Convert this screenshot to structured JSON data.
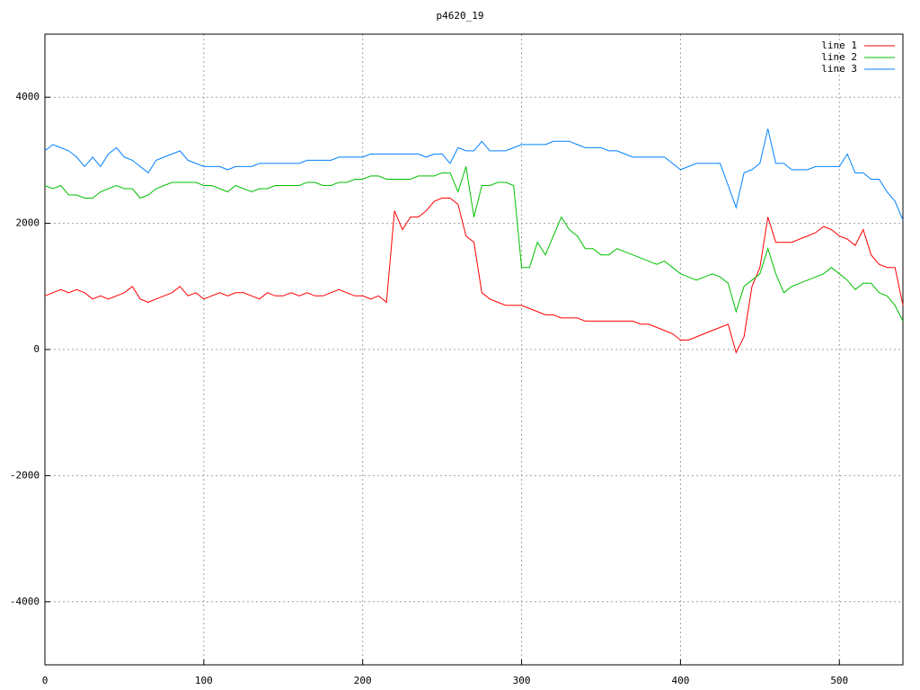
{
  "chart_data": {
    "type": "line",
    "title": "p4620_19",
    "x": [
      0,
      5,
      10,
      15,
      20,
      25,
      30,
      35,
      40,
      45,
      50,
      55,
      60,
      65,
      70,
      75,
      80,
      85,
      90,
      95,
      100,
      105,
      110,
      115,
      120,
      125,
      130,
      135,
      140,
      145,
      150,
      155,
      160,
      165,
      170,
      175,
      180,
      185,
      190,
      195,
      200,
      205,
      210,
      215,
      220,
      225,
      230,
      235,
      240,
      245,
      250,
      255,
      260,
      265,
      270,
      275,
      280,
      285,
      290,
      295,
      300,
      305,
      310,
      315,
      320,
      325,
      330,
      335,
      340,
      345,
      350,
      355,
      360,
      365,
      370,
      375,
      380,
      385,
      390,
      395,
      400,
      405,
      410,
      415,
      420,
      425,
      430,
      435,
      440,
      445,
      450,
      455,
      460,
      465,
      470,
      475,
      480,
      485,
      490,
      495,
      500,
      505,
      510,
      515,
      520,
      525,
      530,
      535,
      540
    ],
    "series": [
      {
        "name": "line 1",
        "color": "#ff0000",
        "values": [
          850,
          900,
          950,
          900,
          950,
          900,
          800,
          850,
          800,
          850,
          900,
          1000,
          800,
          750,
          800,
          850,
          900,
          1000,
          850,
          900,
          800,
          850,
          900,
          850,
          900,
          900,
          850,
          800,
          900,
          850,
          850,
          900,
          850,
          900,
          850,
          850,
          900,
          950,
          900,
          850,
          850,
          800,
          850,
          750,
          2200,
          1900,
          2100,
          2100,
          2200,
          2350,
          2400,
          2400,
          2300,
          1800,
          1700,
          900,
          800,
          750,
          700,
          700,
          700,
          650,
          600,
          550,
          550,
          500,
          500,
          500,
          450,
          450,
          450,
          450,
          450,
          450,
          450,
          400,
          400,
          350,
          300,
          250,
          150,
          150,
          200,
          250,
          300,
          350,
          400,
          -50,
          200,
          1000,
          1300,
          2100,
          1700,
          1700,
          1700,
          1750,
          1800,
          1850,
          1950,
          1900,
          1800,
          1750,
          1650,
          1900,
          1500,
          1350,
          1300,
          1300,
          700
        ]
      },
      {
        "name": "line 2",
        "color": "#00c000",
        "values": [
          2600,
          2550,
          2600,
          2450,
          2450,
          2400,
          2400,
          2500,
          2550,
          2600,
          2550,
          2550,
          2400,
          2450,
          2550,
          2600,
          2650,
          2650,
          2650,
          2650,
          2600,
          2600,
          2550,
          2500,
          2600,
          2550,
          2500,
          2550,
          2550,
          2600,
          2600,
          2600,
          2600,
          2650,
          2650,
          2600,
          2600,
          2650,
          2650,
          2700,
          2700,
          2750,
          2750,
          2700,
          2700,
          2700,
          2700,
          2750,
          2750,
          2750,
          2800,
          2800,
          2500,
          2900,
          2100,
          2600,
          2600,
          2650,
          2650,
          2600,
          1300,
          1300,
          1700,
          1500,
          1800,
          2100,
          1900,
          1800,
          1600,
          1600,
          1500,
          1500,
          1600,
          1550,
          1500,
          1450,
          1400,
          1350,
          1400,
          1300,
          1200,
          1150,
          1100,
          1150,
          1200,
          1150,
          1050,
          600,
          1000,
          1100,
          1200,
          1600,
          1200,
          900,
          1000,
          1050,
          1100,
          1150,
          1200,
          1300,
          1200,
          1100,
          950,
          1050,
          1050,
          900,
          850,
          700,
          450
        ]
      },
      {
        "name": "line 3",
        "color": "#0080ff",
        "values": [
          3150,
          3250,
          3200,
          3150,
          3050,
          2900,
          3050,
          2900,
          3100,
          3200,
          3050,
          3000,
          2900,
          2800,
          3000,
          3050,
          3100,
          3150,
          3000,
          2950,
          2900,
          2900,
          2900,
          2850,
          2900,
          2900,
          2900,
          2950,
          2950,
          2950,
          2950,
          2950,
          2950,
          3000,
          3000,
          3000,
          3000,
          3050,
          3050,
          3050,
          3050,
          3100,
          3100,
          3100,
          3100,
          3100,
          3100,
          3100,
          3050,
          3100,
          3100,
          2950,
          3200,
          3150,
          3150,
          3300,
          3150,
          3150,
          3150,
          3200,
          3250,
          3250,
          3250,
          3250,
          3300,
          3300,
          3300,
          3250,
          3200,
          3200,
          3200,
          3150,
          3150,
          3100,
          3050,
          3050,
          3050,
          3050,
          3050,
          2950,
          2850,
          2900,
          2950,
          2950,
          2950,
          2950,
          2600,
          2250,
          2800,
          2850,
          2950,
          3500,
          2950,
          2950,
          2850,
          2850,
          2850,
          2900,
          2900,
          2900,
          2900,
          3100,
          2800,
          2800,
          2700,
          2700,
          2500,
          2350,
          2050
        ]
      }
    ],
    "xlim": [
      0,
      540
    ],
    "xticks": [
      0,
      100,
      200,
      300,
      400,
      500
    ],
    "ylim": [
      -5000,
      5000
    ],
    "yticks": [
      -4000,
      -2000,
      0,
      2000,
      4000
    ],
    "grid": true,
    "legend": "top-right"
  }
}
